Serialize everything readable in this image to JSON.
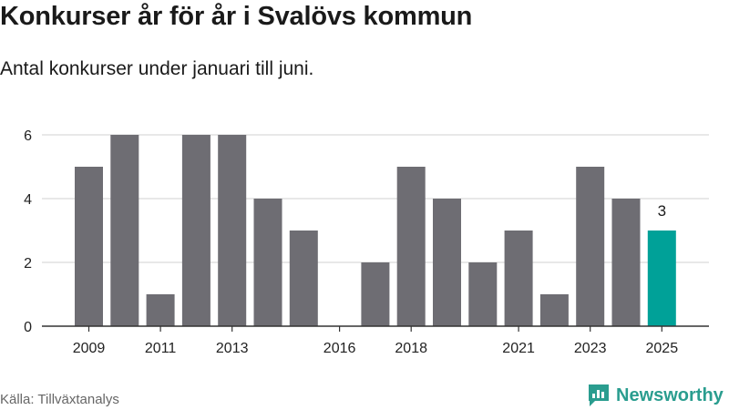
{
  "title": "Konkurser år för år i Svalövs kommun",
  "subtitle": "Antal konkurser under januari till juni.",
  "source": "Källa: Tillväxtanalys",
  "brand": "Newsworthy",
  "colors": {
    "bar": "#6e6d73",
    "highlight": "#00a198",
    "grid": "#d9d9d9",
    "axis": "#333333",
    "brand": "#2a9d8f"
  },
  "chart_data": {
    "type": "bar",
    "x": [
      2009,
      2010,
      2011,
      2012,
      2013,
      2014,
      2015,
      2016,
      2017,
      2018,
      2019,
      2020,
      2021,
      2022,
      2023,
      2024,
      2025
    ],
    "values": [
      5,
      6,
      1,
      6,
      6,
      4,
      3,
      0,
      2,
      5,
      4,
      2,
      3,
      1,
      5,
      4,
      3
    ],
    "highlight_index": 16,
    "x_tick_labels": [
      "2009",
      "2011",
      "2013",
      "2016",
      "2018",
      "2021",
      "2023",
      "2025"
    ],
    "y_ticks": [
      0,
      2,
      4,
      6
    ],
    "ylim": [
      0,
      6
    ],
    "data_labels": [
      {
        "index": 16,
        "text": "3"
      }
    ],
    "grid": true
  }
}
